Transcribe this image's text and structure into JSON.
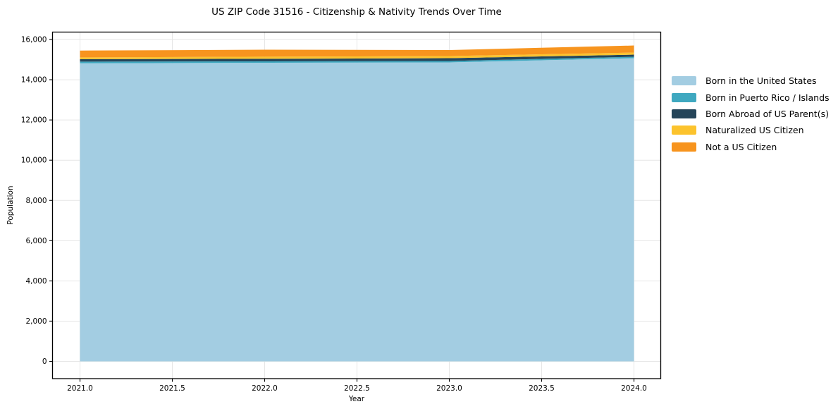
{
  "style": {
    "background_color": "#ffffff",
    "grid_color": "#e6e6e6",
    "spine_color": "#000000",
    "text_color": "#000000"
  },
  "chart_data": {
    "type": "area",
    "title": "US ZIP Code 31516 - Citizenship & Nativity Trends Over Time",
    "xlabel": "Year",
    "ylabel": "Population",
    "x": [
      2021,
      2022,
      2023,
      2024
    ],
    "series": [
      {
        "name": "Born in the United States",
        "color": "#a3cde2",
        "values": [
          14815,
          14845,
          14860,
          15070
        ]
      },
      {
        "name": "Born in Puerto Rico / Islands",
        "color": "#3fa8c0",
        "values": [
          85,
          70,
          70,
          70
        ]
      },
      {
        "name": "Born Abroad of US Parent(s)",
        "color": "#25455a",
        "values": [
          120,
          125,
          140,
          105
        ]
      },
      {
        "name": "Naturalized US Citizen",
        "color": "#fcc32d",
        "values": [
          90,
          105,
          105,
          105
        ]
      },
      {
        "name": "Not a US Citizen",
        "color": "#f7941e",
        "values": [
          340,
          345,
          300,
          350
        ]
      }
    ],
    "stacked": true,
    "xlim": [
      2020.85,
      2024.15
    ],
    "ylim": [
      0,
      16000
    ],
    "xticks": [
      2021.0,
      2021.5,
      2022.0,
      2022.5,
      2023.0,
      2023.5,
      2024.0
    ],
    "xtick_labels": [
      "2021.0",
      "2021.5",
      "2022.0",
      "2022.5",
      "2023.0",
      "2023.5",
      "2024.0"
    ],
    "yticks": [
      0,
      2000,
      4000,
      6000,
      8000,
      10000,
      12000,
      14000,
      16000
    ],
    "ytick_labels": [
      "0",
      "2,000",
      "4,000",
      "6,000",
      "8,000",
      "10,000",
      "12,000",
      "14,000",
      "16,000"
    ],
    "grid": true,
    "legend_position": "right-outside"
  }
}
